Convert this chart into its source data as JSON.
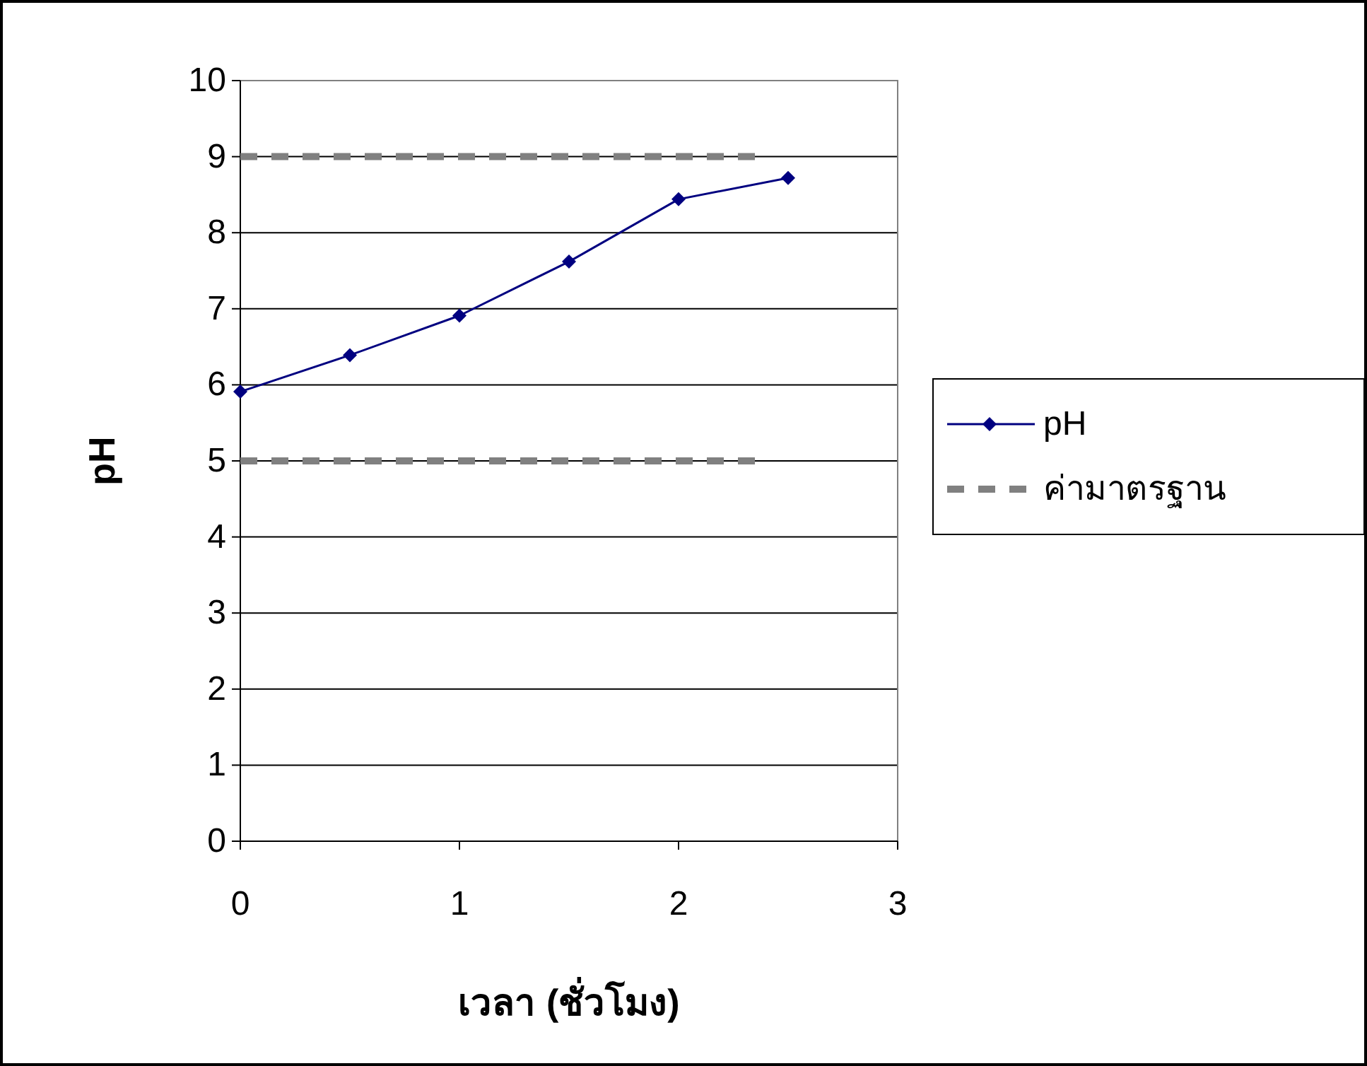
{
  "chart_data": {
    "type": "line",
    "xlabel": "เวลา (ชั่วโมง)",
    "ylabel": "pH",
    "xlim": [
      0,
      3
    ],
    "xticks": [
      0,
      1,
      2,
      3
    ],
    "ylim": [
      0,
      10
    ],
    "yticks": [
      0,
      1,
      2,
      3,
      4,
      5,
      6,
      7,
      8,
      9,
      10
    ],
    "grid": "y",
    "legend": "right",
    "series": [
      {
        "name": "pH",
        "color": "#000080",
        "marker": "diamond",
        "line_style": "solid",
        "x": [
          0,
          0.5,
          1,
          1.5,
          2,
          2.5
        ],
        "values": [
          5.91,
          6.39,
          6.91,
          7.62,
          8.44,
          8.72
        ]
      },
      {
        "name": "ค่ามาตรฐาน",
        "color": "#808080",
        "marker": "none",
        "line_style": "dashed",
        "x": [
          0,
          2.35
        ],
        "values": [
          9,
          9
        ]
      },
      {
        "color": "#808080",
        "marker": "none",
        "line_style": "dashed",
        "x": [
          0,
          2.35
        ],
        "values": [
          5,
          5
        ]
      }
    ]
  }
}
